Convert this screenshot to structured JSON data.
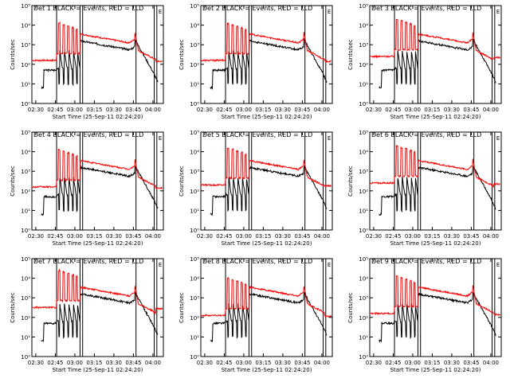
{
  "chart_data": {
    "type": "line",
    "panel_title_template": "Det {n}  BLACK = Events, RED = LLD",
    "ylabel": "Counts/sec",
    "xlabel": "Start Time (25-Sep-11 02:24:20)",
    "yscale": "log",
    "ylim": [
      1,
      100000
    ],
    "ytick_labels": [
      "10⁰",
      "10¹",
      "10²",
      "10³",
      "10⁴",
      "10⁵"
    ],
    "xtick_labels": [
      "02:30",
      "02:45",
      "03:00",
      "03:15",
      "03:30",
      "03:45",
      "04:00"
    ],
    "xlim_minutes": [
      -3,
      98
    ],
    "marker_lines_minutes": [
      16,
      34,
      36,
      77,
      91,
      93
    ],
    "marker_label": "E",
    "line_colors": {
      "events": "#000000",
      "lld": "#ff0000"
    },
    "panels": [
      {
        "detector": 1,
        "base": 2.2
      },
      {
        "detector": 2,
        "base": 2.2
      },
      {
        "detector": 3,
        "base": 2.4
      },
      {
        "detector": 4,
        "base": 2.2
      },
      {
        "detector": 5,
        "base": 2.3
      },
      {
        "detector": 6,
        "base": 2.4
      },
      {
        "detector": 7,
        "base": 2.5
      },
      {
        "detector": 8,
        "base": 2.1
      },
      {
        "detector": 9,
        "base": 2.2
      }
    ]
  }
}
